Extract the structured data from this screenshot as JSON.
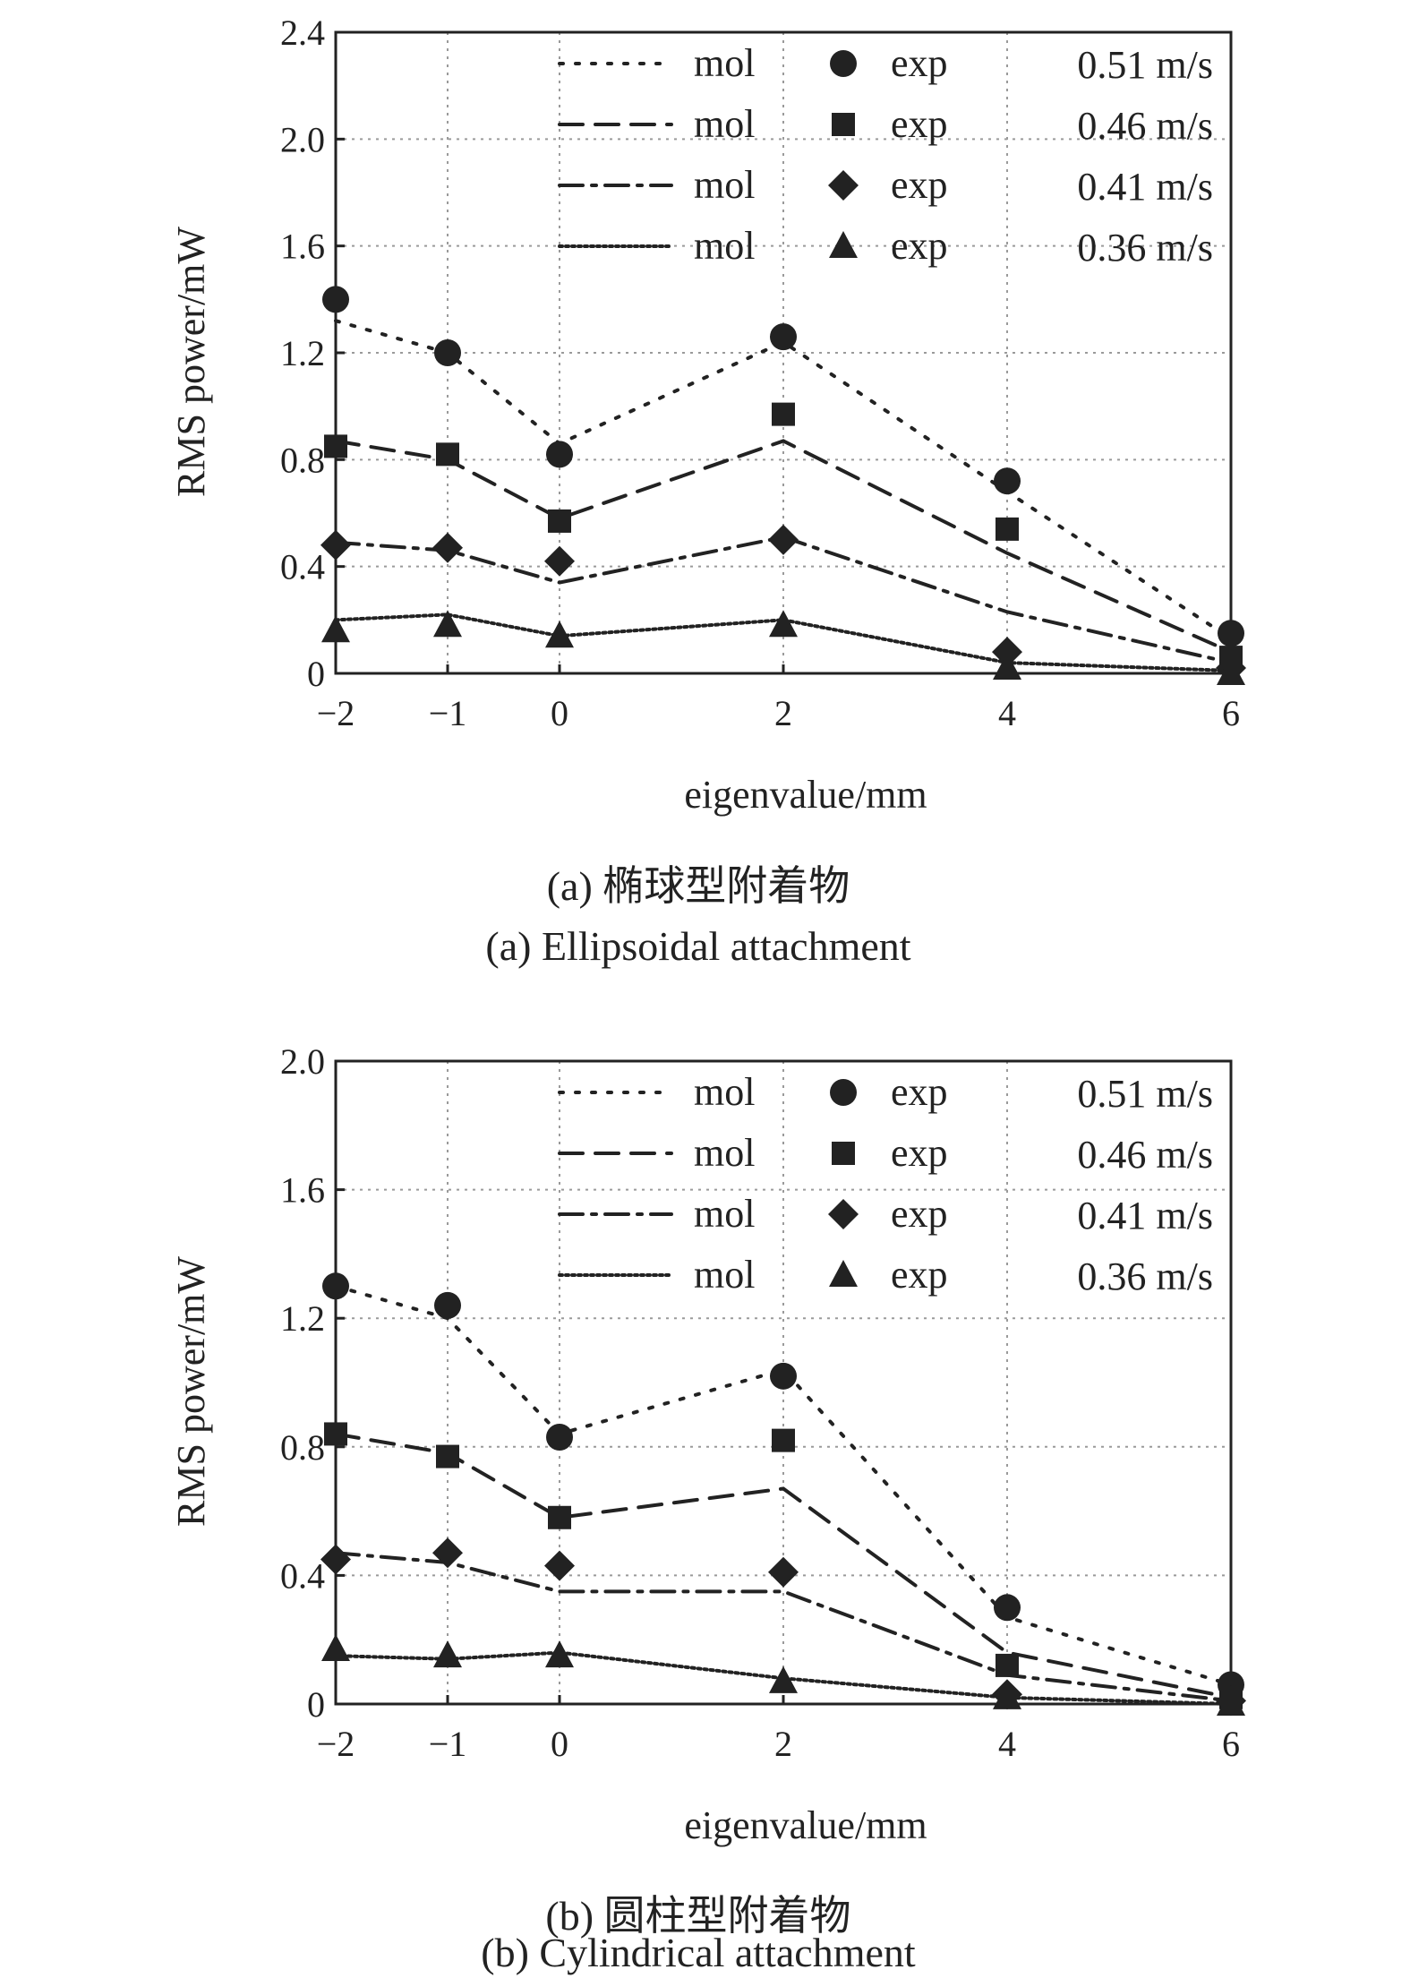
{
  "chart_data": [
    {
      "type": "line",
      "panel": "a",
      "caption_cn": "(a) 椭球型附着物",
      "caption_en": "(a) Ellipsoidal attachment",
      "xlabel": "eigenvalue/mm",
      "ylabel": "RMS power/mW",
      "x": [
        -2,
        -1,
        0,
        2,
        4,
        6
      ],
      "x_tick_labels": [
        "−2",
        "−1",
        "0",
        "2",
        "4",
        "6"
      ],
      "ylim": [
        0,
        2.4
      ],
      "y_ticks": [
        0,
        0.4,
        0.8,
        1.2,
        1.6,
        2.0,
        2.4
      ],
      "y_tick_labels": [
        "0",
        "0.4",
        "0.8",
        "1.2",
        "1.6",
        "2.0",
        "2.4"
      ],
      "grid": true,
      "legend_placement": "top-right",
      "series": [
        {
          "name": "0.51 m/s",
          "mol_label": "mol",
          "exp_label": "exp",
          "marker": "circle",
          "line_style": "dotted-wide",
          "mol": [
            1.32,
            1.2,
            0.86,
            1.24,
            0.68,
            0.13
          ],
          "exp": [
            1.4,
            1.2,
            0.82,
            1.26,
            0.72,
            0.15
          ]
        },
        {
          "name": "0.46 m/s",
          "mol_label": "mol",
          "exp_label": "exp",
          "marker": "square",
          "line_style": "dashed",
          "mol": [
            0.87,
            0.8,
            0.58,
            0.87,
            0.45,
            0.08
          ],
          "exp": [
            0.85,
            0.82,
            0.57,
            0.97,
            0.54,
            0.06
          ]
        },
        {
          "name": "0.41 m/s",
          "mol_label": "mol",
          "exp_label": "exp",
          "marker": "diamond",
          "line_style": "dash-dot",
          "mol": [
            0.49,
            0.46,
            0.34,
            0.51,
            0.23,
            0.04
          ],
          "exp": [
            0.48,
            0.47,
            0.42,
            0.5,
            0.08,
            0.02
          ]
        },
        {
          "name": "0.36 m/s",
          "mol_label": "mol",
          "exp_label": "exp",
          "marker": "triangle",
          "line_style": "dotted-dense",
          "mol": [
            0.2,
            0.22,
            0.14,
            0.2,
            0.04,
            0.01
          ],
          "exp": [
            0.16,
            0.18,
            0.14,
            0.18,
            0.02,
            0.0
          ]
        }
      ]
    },
    {
      "type": "line",
      "panel": "b",
      "caption_cn": "(b) 圆柱型附着物",
      "caption_en": "(b) Cylindrical attachment",
      "xlabel": "eigenvalue/mm",
      "ylabel": "RMS power/mW",
      "x": [
        -2,
        -1,
        0,
        2,
        4,
        6
      ],
      "x_tick_labels": [
        "−2",
        "−1",
        "0",
        "2",
        "4",
        "6"
      ],
      "ylim": [
        0,
        2.0
      ],
      "y_ticks": [
        0,
        0.4,
        0.8,
        1.2,
        1.6,
        2.0
      ],
      "y_tick_labels": [
        "0",
        "0.4",
        "0.8",
        "1.2",
        "1.6",
        "2.0"
      ],
      "grid": true,
      "legend_placement": "top-right",
      "series": [
        {
          "name": "0.51 m/s",
          "mol_label": "mol",
          "exp_label": "exp",
          "marker": "circle",
          "line_style": "dotted-wide",
          "mol": [
            1.3,
            1.2,
            0.84,
            1.04,
            0.27,
            0.06
          ],
          "exp": [
            1.3,
            1.24,
            0.83,
            1.02,
            0.3,
            0.06
          ]
        },
        {
          "name": "0.46 m/s",
          "mol_label": "mol",
          "exp_label": "exp",
          "marker": "square",
          "line_style": "dashed",
          "mol": [
            0.84,
            0.78,
            0.58,
            0.67,
            0.16,
            0.02
          ],
          "exp": [
            0.84,
            0.77,
            0.58,
            0.82,
            0.12,
            0.02
          ]
        },
        {
          "name": "0.41 m/s",
          "mol_label": "mol",
          "exp_label": "exp",
          "marker": "diamond",
          "line_style": "dash-dot",
          "mol": [
            0.47,
            0.44,
            0.35,
            0.35,
            0.09,
            0.01
          ],
          "exp": [
            0.45,
            0.47,
            0.43,
            0.41,
            0.03,
            0.01
          ]
        },
        {
          "name": "0.36 m/s",
          "mol_label": "mol",
          "exp_label": "exp",
          "marker": "triangle",
          "line_style": "dotted-dense",
          "mol": [
            0.15,
            0.14,
            0.16,
            0.08,
            0.02,
            0.0
          ],
          "exp": [
            0.17,
            0.15,
            0.15,
            0.07,
            0.02,
            0.0
          ]
        }
      ]
    }
  ]
}
